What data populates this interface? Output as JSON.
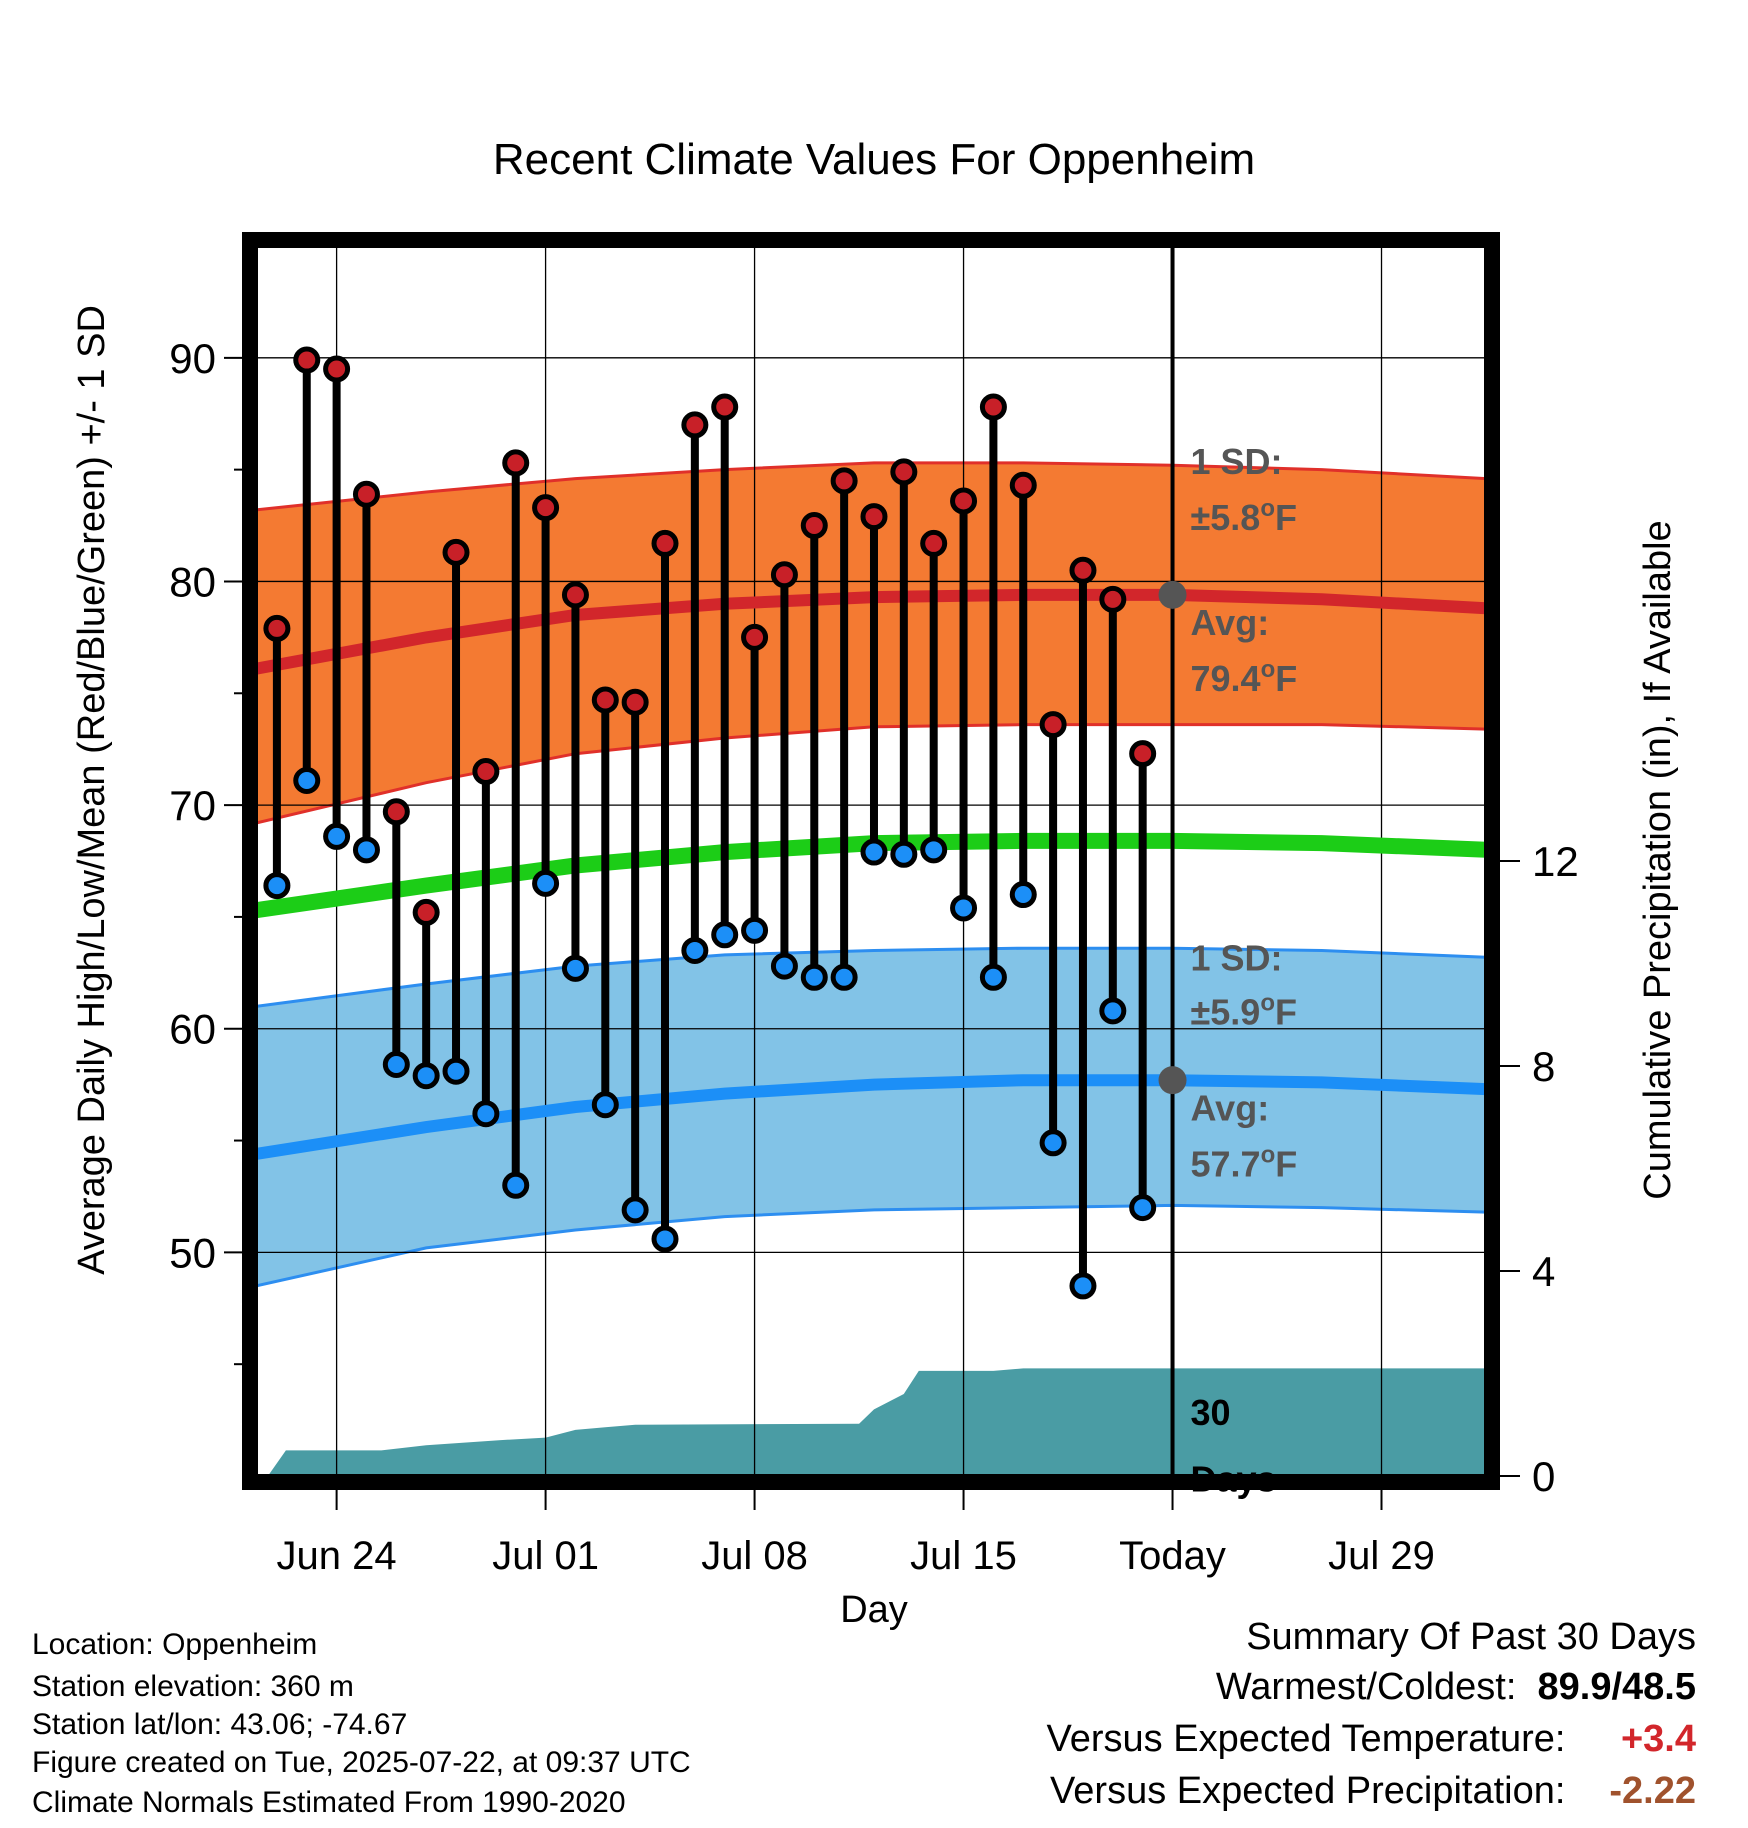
{
  "chart_data": {
    "type": "line",
    "title": "Recent Climate Values For Oppenheim",
    "xlabel": "Day",
    "ylabel": "Average Daily High/Low/Mean (Red/Blue/Green) +/- 1 SD",
    "y2label": "Cumulative Precipitation (in), If Available",
    "ylim": [
      40,
      95
    ],
    "y2lim": [
      0,
      24
    ],
    "y_ticks": [
      "50",
      "60",
      "70",
      "80",
      "90"
    ],
    "y2_ticks": [
      "0",
      "4",
      "8",
      "12"
    ],
    "x_ticks": [
      "Jun 24",
      "Jul 01",
      "Jul 08",
      "Jul 15",
      "Today",
      "Jul 29"
    ],
    "x_tick_days": [
      2,
      9,
      16,
      23,
      30,
      37
    ],
    "xlim": [
      -0.7,
      40.5
    ],
    "grid": true,
    "today_day": 30,
    "days": [
      0,
      1,
      2,
      3,
      4,
      5,
      6,
      7,
      8,
      9,
      10,
      11,
      12,
      13,
      14,
      15,
      16,
      17,
      18,
      19,
      20,
      21,
      22,
      23,
      24,
      25,
      26,
      27,
      28,
      29
    ],
    "daily_high": [
      77.9,
      89.9,
      89.5,
      83.9,
      69.7,
      65.2,
      81.3,
      71.5,
      85.3,
      83.3,
      79.4,
      74.7,
      74.6,
      81.7,
      87.0,
      87.8,
      77.5,
      80.3,
      82.5,
      84.5,
      82.9,
      84.9,
      81.7,
      83.6,
      87.8,
      84.3,
      73.6,
      80.5,
      79.2,
      72.3
    ],
    "daily_low": [
      66.4,
      71.1,
      68.6,
      68.0,
      58.4,
      57.9,
      58.1,
      56.2,
      53.0,
      66.5,
      62.7,
      56.6,
      51.9,
      50.6,
      63.5,
      64.2,
      64.4,
      62.8,
      62.3,
      62.3,
      67.9,
      67.8,
      68.0,
      65.4,
      62.3,
      66.0,
      54.9,
      48.5,
      60.8,
      52.0
    ],
    "normal_days": [
      -0.7,
      5,
      10,
      15,
      20,
      25,
      30,
      35,
      40.5
    ],
    "normal_high_avg": [
      76.1,
      77.5,
      78.5,
      79.0,
      79.3,
      79.4,
      79.4,
      79.2,
      78.8
    ],
    "normal_high_upper": [
      83.2,
      84.0,
      84.6,
      85.0,
      85.3,
      85.3,
      85.2,
      85.0,
      84.6
    ],
    "normal_high_lower": [
      69.2,
      71.0,
      72.3,
      73.0,
      73.5,
      73.6,
      73.6,
      73.6,
      73.4
    ],
    "normal_mean": [
      65.3,
      66.4,
      67.3,
      67.9,
      68.3,
      68.4,
      68.4,
      68.3,
      68.0
    ],
    "normal_low_avg": [
      54.4,
      55.6,
      56.5,
      57.1,
      57.5,
      57.7,
      57.7,
      57.6,
      57.3
    ],
    "normal_low_upper": [
      61.0,
      62.0,
      62.8,
      63.3,
      63.5,
      63.6,
      63.6,
      63.5,
      63.2
    ],
    "normal_low_lower": [
      48.5,
      50.2,
      51.0,
      51.6,
      51.9,
      52.0,
      52.1,
      52.0,
      51.8
    ],
    "precip_days": [
      -0.3,
      0.3,
      3.5,
      5,
      7.5,
      9,
      10,
      11,
      12,
      19.5,
      20,
      21,
      21.5,
      23,
      24,
      25,
      26,
      40.5
    ],
    "precip_cumulative": [
      0.0,
      0.5,
      0.5,
      0.6,
      0.7,
      0.75,
      0.9,
      0.95,
      1.0,
      1.02,
      1.3,
      1.6,
      2.05,
      2.05,
      2.05,
      2.1,
      2.1,
      2.1
    ],
    "high_sd_label": [
      "1 SD:",
      "±5.8°F"
    ],
    "high_avg_label": [
      "Avg:",
      "79.4°F"
    ],
    "low_sd_label": [
      "1 SD:",
      "±5.9°F"
    ],
    "low_avg_label": [
      "Avg:",
      "57.7°F"
    ],
    "precip_label": [
      "30",
      "Days"
    ],
    "colors": {
      "high_band": "#f47a32",
      "high_edge": "#e0302a",
      "high_line": "#d2262b",
      "high_dot": "#c82028",
      "low_band": "#82c3e7",
      "low_edge": "#2d8ef0",
      "low_line": "#1c8ff7",
      "low_dot": "#1c8ff7",
      "mean_line": "#1ccd17",
      "precip": "#4a9ca4",
      "label_gray": "#555555"
    }
  },
  "info": {
    "location": "Location: Oppenheim",
    "elevation": "Station elevation: 360 m",
    "latlon": "Station lat/lon: 43.06; -74.67",
    "created": "Figure created on Tue, 2025-07-22, at 09:37 UTC",
    "normals": "Climate Normals Estimated From 1990-2020"
  },
  "summary": {
    "heading": "Summary Of Past 30 Days",
    "warm_cold_label": "Warmest/Coldest:",
    "warm_cold_value": "89.9/48.5",
    "temp_label": "Versus Expected Temperature:",
    "temp_value": "+3.4",
    "precip_label": "Versus Expected Precipitation:",
    "precip_value": "-2.22",
    "temp_color": "#d2262b",
    "precip_color": "#a0522d"
  }
}
